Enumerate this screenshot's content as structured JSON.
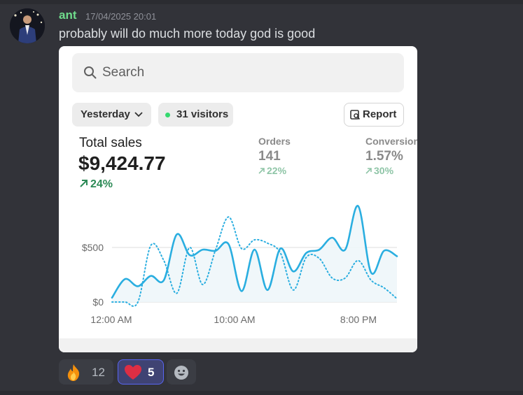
{
  "message": {
    "author": "ant",
    "timestamp": "17/04/2025 20:01",
    "text": "probably will do much more today god is good",
    "author_color": "#6fdc8c"
  },
  "attachment": {
    "search": {
      "placeholder": "Search",
      "icon": "search-icon"
    },
    "date_filter": {
      "label": "Yesterday",
      "icon": "chevron-down-icon"
    },
    "visitors": {
      "label": "31 visitors",
      "dot_color": "#35d96f"
    },
    "report_button": {
      "label": "Report",
      "icon": "report-icon"
    },
    "total_sales": {
      "label": "Total sales",
      "value": "$9,424.77",
      "change": "24%"
    },
    "orders": {
      "label": "Orders",
      "value": "141",
      "change": "22%"
    },
    "conversion": {
      "label": "Conversion",
      "value": "1.57%",
      "change": "30%"
    }
  },
  "chart_data": {
    "type": "line",
    "y_ticks": [
      "$0",
      "$500"
    ],
    "x_ticks": [
      "12:00 AM",
      "10:00 AM",
      "8:00 PM"
    ],
    "ylim": [
      0,
      1000
    ],
    "series": [
      {
        "style": "solid",
        "color": "#2aaee0",
        "values": [
          40,
          210,
          145,
          240,
          200,
          620,
          430,
          480,
          470,
          530,
          100,
          480,
          110,
          490,
          280,
          450,
          480,
          590,
          480,
          880,
          270,
          470,
          420
        ]
      },
      {
        "style": "dotted",
        "color": "#2aaee0",
        "values": [
          0,
          0,
          0,
          520,
          380,
          80,
          500,
          160,
          480,
          780,
          490,
          570,
          540,
          450,
          110,
          410,
          400,
          220,
          220,
          380,
          200,
          130,
          30
        ]
      }
    ]
  },
  "reactions": [
    {
      "emoji": "fire",
      "count": "12"
    },
    {
      "emoji": "red-heart",
      "count": "5"
    },
    {
      "emoji": "add-reaction"
    }
  ]
}
